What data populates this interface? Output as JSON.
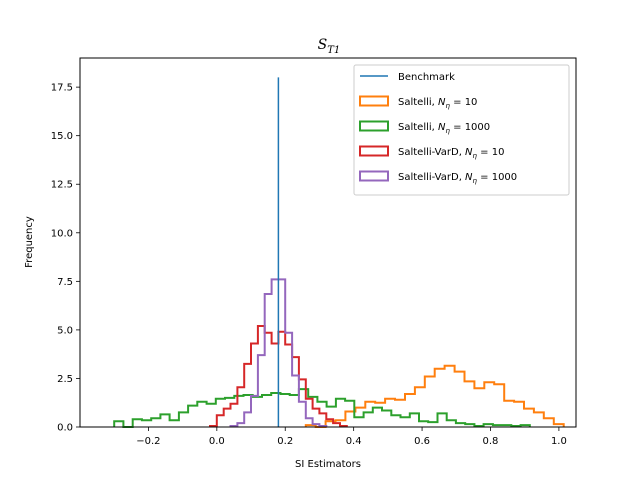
{
  "chart_data": {
    "type": "histogram",
    "title": "S_T1",
    "title_main": "S",
    "title_sub": "T1",
    "xlabel": "SI Estimators",
    "ylabel": "Frequency",
    "xlim": [
      -0.4,
      1.05
    ],
    "ylim": [
      0,
      19
    ],
    "xticks": [
      -0.2,
      0.0,
      0.2,
      0.4,
      0.6,
      0.8,
      1.0
    ],
    "xtick_labels": [
      "−0.2",
      "0.0",
      "0.2",
      "0.4",
      "0.6",
      "0.8",
      "1.0"
    ],
    "yticks": [
      0.0,
      2.5,
      5.0,
      7.5,
      10.0,
      12.5,
      15.0,
      17.5
    ],
    "ytick_labels": [
      "0.0",
      "2.5",
      "5.0",
      "7.5",
      "10.0",
      "12.5",
      "15.0",
      "17.5"
    ],
    "grid": false,
    "legend_position": "top-right",
    "legend": [
      {
        "prefix": "Benchmark",
        "sub": "",
        "suffix": "",
        "kind": "line"
      },
      {
        "prefix": "Saltelli, N",
        "sub": "η",
        "suffix": " = 10",
        "kind": "box"
      },
      {
        "prefix": "Saltelli, N",
        "sub": "η",
        "suffix": " = 1000",
        "kind": "box"
      },
      {
        "prefix": "Saltelli-VarD, N",
        "sub": "η",
        "suffix": " = 10",
        "kind": "box"
      },
      {
        "prefix": "Saltelli-VarD, N",
        "sub": "η",
        "suffix": " = 1000",
        "kind": "box"
      }
    ],
    "benchmark": {
      "x": 0.18,
      "y": 18.0,
      "color": "#1f77b4"
    },
    "series": [
      {
        "name": "Saltelli, N_η = 10",
        "color": "#ff7f0e",
        "bin_edges": [
          0.26,
          0.289,
          0.318,
          0.347,
          0.376,
          0.405,
          0.434,
          0.463,
          0.492,
          0.521,
          0.55,
          0.579,
          0.608,
          0.637,
          0.666,
          0.695,
          0.724,
          0.753,
          0.782,
          0.811,
          0.84,
          0.869,
          0.898,
          0.927,
          0.956,
          0.985,
          1.014
        ],
        "counts": [
          0.1,
          0.0,
          0.3,
          0.35,
          0.8,
          1.0,
          1.3,
          1.25,
          1.45,
          1.4,
          1.7,
          2.05,
          2.6,
          3.0,
          3.15,
          2.85,
          2.35,
          2.0,
          2.3,
          2.2,
          1.35,
          1.3,
          0.95,
          0.75,
          0.45,
          0.15
        ]
      },
      {
        "name": "Saltelli, N_η = 1000",
        "color": "#2ca02c",
        "bin_edges": [
          -0.3,
          -0.273,
          -0.246,
          -0.219,
          -0.192,
          -0.165,
          -0.138,
          -0.111,
          -0.084,
          -0.057,
          -0.03,
          -0.003,
          0.024,
          0.051,
          0.078,
          0.105,
          0.132,
          0.159,
          0.186,
          0.213,
          0.24,
          0.267,
          0.294,
          0.321,
          0.348,
          0.375,
          0.402,
          0.429,
          0.456,
          0.483,
          0.51,
          0.537,
          0.564,
          0.591,
          0.618,
          0.645,
          0.672,
          0.699,
          0.726,
          0.753,
          0.78,
          0.807,
          0.834,
          0.861,
          0.888,
          0.915
        ],
        "counts": [
          0.3,
          0.0,
          0.4,
          0.35,
          0.45,
          0.65,
          0.35,
          0.75,
          1.1,
          1.3,
          1.2,
          1.45,
          1.5,
          1.6,
          1.65,
          1.55,
          1.65,
          1.75,
          1.7,
          1.65,
          1.95,
          1.55,
          1.3,
          1.05,
          1.45,
          1.35,
          0.5,
          0.75,
          1.0,
          0.85,
          0.6,
          0.5,
          0.7,
          0.3,
          0.25,
          0.7,
          0.35,
          0.2,
          0.15,
          0.05,
          0.15,
          0.1,
          0.1,
          0.05,
          0.1
        ]
      },
      {
        "name": "Saltelli-VarD, N_η = 10",
        "color": "#d62728",
        "bin_edges": [
          -0.02,
          0.0,
          0.02,
          0.04,
          0.06,
          0.08,
          0.1,
          0.12,
          0.14,
          0.16,
          0.18,
          0.2,
          0.22,
          0.24,
          0.26,
          0.28,
          0.3,
          0.32,
          0.34,
          0.36,
          0.38
        ],
        "counts": [
          0.05,
          0.6,
          0.95,
          1.2,
          2.05,
          3.25,
          4.3,
          5.2,
          4.85,
          4.3,
          4.9,
          4.25,
          3.6,
          2.45,
          1.45,
          0.95,
          0.7,
          0.4,
          0.2,
          0.05
        ]
      },
      {
        "name": "Saltelli-VarD, N_η = 1000",
        "color": "#9467bd",
        "bin_edges": [
          0.04,
          0.06,
          0.08,
          0.1,
          0.12,
          0.14,
          0.16,
          0.18,
          0.2,
          0.22,
          0.24,
          0.26,
          0.28,
          0.3,
          0.32
        ],
        "counts": [
          0.05,
          0.2,
          0.75,
          1.6,
          3.7,
          6.85,
          7.6,
          7.6,
          4.85,
          2.65,
          1.3,
          0.45,
          0.15,
          0.05
        ]
      }
    ]
  }
}
